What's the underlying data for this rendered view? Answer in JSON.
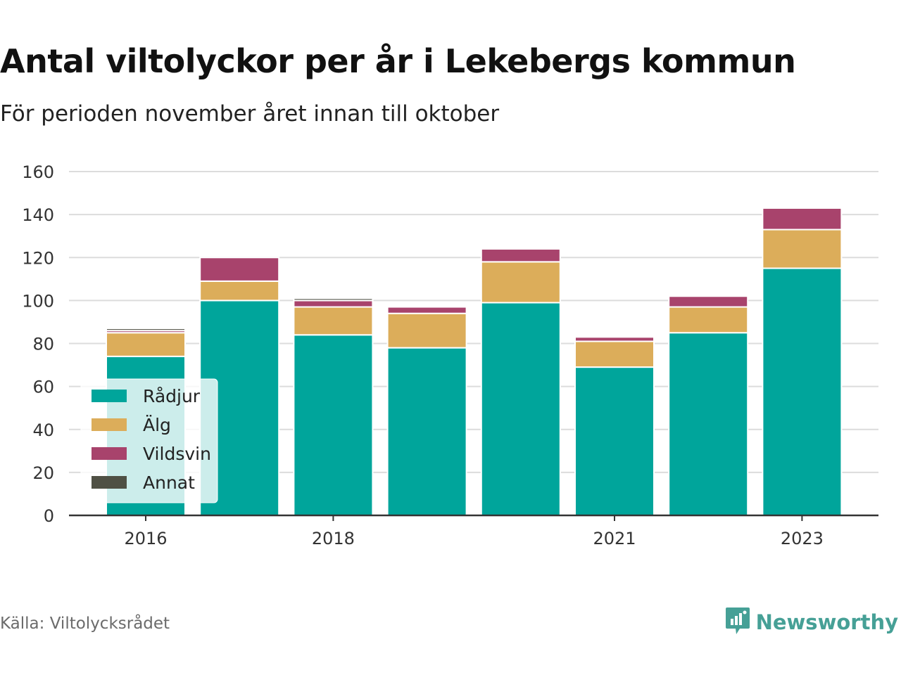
{
  "title": "Antal viltolyckor per år i Lekebergs kommun",
  "subtitle": "För perioden november året innan till oktober",
  "source": "Källa: Viltolycksrådet",
  "brand": {
    "name": "Newsworthy",
    "icon": "newsworthy-logo-icon",
    "color": "#46a096"
  },
  "chart_data": {
    "type": "bar",
    "stacked": true,
    "categories": [
      "2016",
      "2017",
      "2018",
      "2019",
      "2020",
      "2021",
      "2022",
      "2023"
    ],
    "x_tick_labels": [
      "2016",
      "",
      "2018",
      "",
      "",
      "2021",
      "",
      "2023"
    ],
    "series": [
      {
        "name": "Rådjur",
        "color": "#00a59b",
        "values": [
          74,
          100,
          84,
          78,
          99,
          69,
          85,
          115
        ]
      },
      {
        "name": "Älg",
        "color": "#dcad5a",
        "values": [
          11,
          9,
          13,
          16,
          19,
          12,
          12,
          18
        ]
      },
      {
        "name": "Vildsvin",
        "color": "#a8436c",
        "values": [
          1,
          11,
          3,
          3,
          6,
          2,
          5,
          10
        ]
      },
      {
        "name": "Annat",
        "color": "#4f5044",
        "values": [
          1,
          0,
          1,
          0,
          0,
          0,
          0,
          0
        ]
      }
    ],
    "ylim": [
      0,
      160
    ],
    "y_ticks": [
      0,
      20,
      40,
      60,
      80,
      100,
      120,
      140,
      160
    ],
    "grid": true,
    "legend_position": "bottom-left"
  }
}
